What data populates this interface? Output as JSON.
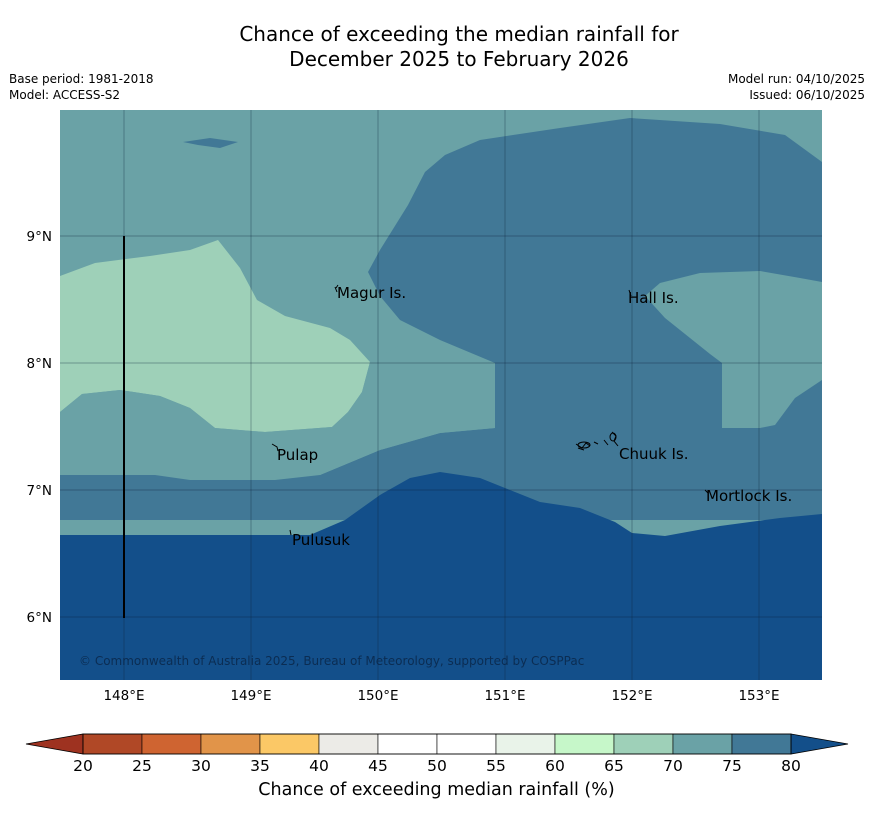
{
  "title": {
    "line1": "Chance of exceeding the median rainfall for",
    "line2": "December 2025 to February 2026"
  },
  "meta": {
    "base_period": "Base period: 1981-2018",
    "model": "Model: ACCESS-S2",
    "model_run": "Model run: 04/10/2025",
    "issued": "Issued: 06/10/2025"
  },
  "map": {
    "lat_labels": [
      "9°N",
      "8°N",
      "7°N",
      "6°N"
    ],
    "lon_labels": [
      "148°E",
      "149°E",
      "150°E",
      "151°E",
      "152°E",
      "153°E"
    ],
    "places": [
      {
        "name": "Magur Is."
      },
      {
        "name": "Hall Is."
      },
      {
        "name": "Pulap"
      },
      {
        "name": "Chuuk Is."
      },
      {
        "name": "Mortlock Is."
      },
      {
        "name": "Pulusuk"
      }
    ],
    "copyright": "© Commonwealth of Australia 2025, Bureau of Meteorology, supported by COSPPac",
    "class_colors": {
      "65-70": "#9ed0b8",
      "70-75": "#6aa2a6",
      "75-80": "#417896",
      "80+": "#134f8a"
    }
  },
  "colorbar": {
    "ticks": [
      "20",
      "25",
      "30",
      "35",
      "40",
      "45",
      "50",
      "55",
      "60",
      "65",
      "70",
      "75",
      "80"
    ],
    "colors": [
      "#b04826",
      "#cf6431",
      "#e19449",
      "#fbc866",
      "#ecebe7",
      "#ffffff",
      "#ffffff",
      "#e9f3e9",
      "#c6f7c9",
      "#9ed0b8",
      "#6aa2a6",
      "#417896"
    ],
    "under_color": "#9e3220",
    "over_color": "#134f8a",
    "label": "Chance of exceeding median rainfall (%)"
  }
}
